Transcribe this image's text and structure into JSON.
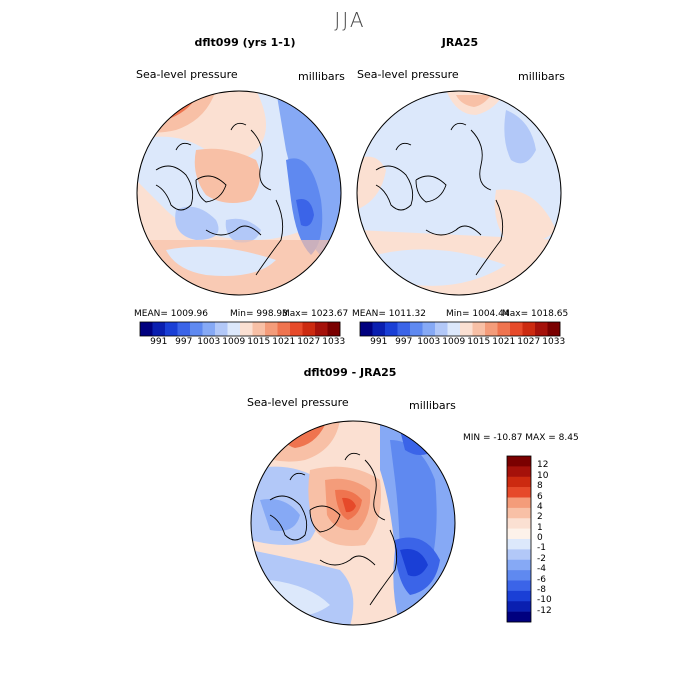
{
  "title": "JJA",
  "panels": [
    {
      "id": "left",
      "title": "dflt099 (yrs 1-1)",
      "left_label": "Sea-level pressure",
      "right_label": "millibars",
      "stats": {
        "mean": "MEAN= 1009.96",
        "min": "Min= 998.93",
        "max": "Max= 1023.67"
      }
    },
    {
      "id": "right",
      "title": "JRA25",
      "left_label": "Sea-level pressure",
      "right_label": "millibars",
      "stats": {
        "mean": "MEAN= 1011.32",
        "min": "Min= 1004.44",
        "max": "Max= 1018.65"
      }
    },
    {
      "id": "bottom",
      "title": "dflt099 - JRA25",
      "left_label": "Sea-level pressure",
      "right_label": "millibars",
      "minmax": "MIN = -10.87  MAX =   8.45"
    }
  ],
  "colorbar_horizontal": {
    "ticks": [
      "991",
      "997",
      "1003",
      "1009",
      "1015",
      "1021",
      "1027",
      "1033"
    ],
    "colors": [
      "#00007f",
      "#0a1fb0",
      "#1a3fd6",
      "#3b64e8",
      "#5f89f0",
      "#86a9f5",
      "#b2c8f8",
      "#dce8fb",
      "#fbe0d2",
      "#f8c0a6",
      "#f49c7a",
      "#ef744f",
      "#e64a2a",
      "#cc2a10",
      "#a5110a",
      "#7a0000"
    ]
  },
  "colorbar_vertical": {
    "ticks": [
      "12",
      "10",
      "8",
      "6",
      "4",
      "2",
      "1",
      "0",
      "-1",
      "-2",
      "-4",
      "-6",
      "-8",
      "-10",
      "-12"
    ],
    "colors": [
      "#7a0000",
      "#a5110a",
      "#cc2a10",
      "#e64a2a",
      "#f49c7a",
      "#f8c0a6",
      "#fbe0d2",
      "#fdf2ea",
      "#dce8fb",
      "#b2c8f8",
      "#86a9f5",
      "#5f89f0",
      "#3b64e8",
      "#1a3fd6",
      "#0a1fb0",
      "#00007f"
    ]
  }
}
